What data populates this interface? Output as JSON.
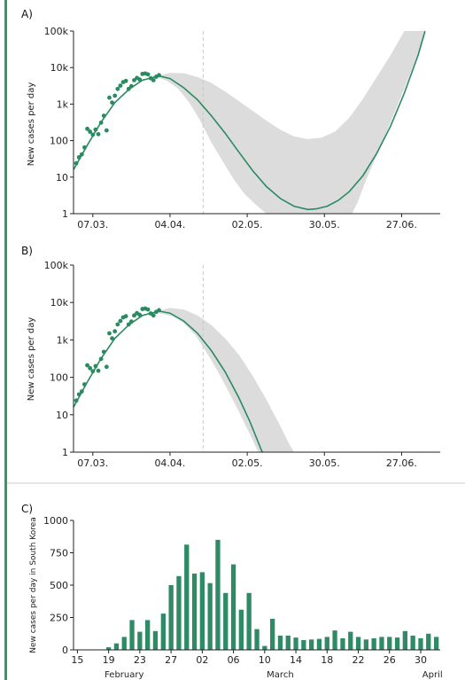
{
  "colors": {
    "line": "#2a8a62",
    "points": "#2a8a62",
    "bars": "#2e8b66",
    "band": "#dcdcdc",
    "frame": "#2e9a6a",
    "divider": "#cccccc"
  },
  "chart_data": [
    {
      "type": "scatter",
      "panel_label": "A)",
      "ylabel": "New cases per day",
      "y_scale": "log",
      "ylim": [
        1,
        100000
      ],
      "y_ticks": [
        1,
        10,
        100,
        1000,
        10000,
        100000
      ],
      "y_tick_labels": [
        "1",
        "10",
        "100",
        "1k",
        "10k",
        "100k"
      ],
      "x_ticks": [
        "07.03.",
        "04.04.",
        "02.05.",
        "30.05.",
        "27.06."
      ],
      "x_tick_days": [
        7,
        35,
        63,
        91,
        119
      ],
      "xlim_days": [
        0,
        133
      ],
      "vline_day": 47,
      "points": [
        {
          "x": 1,
          "y": 24
        },
        {
          "x": 2,
          "y": 35
        },
        {
          "x": 3,
          "y": 42
        },
        {
          "x": 4,
          "y": 65
        },
        {
          "x": 5,
          "y": 210
        },
        {
          "x": 6,
          "y": 175
        },
        {
          "x": 7,
          "y": 145
        },
        {
          "x": 8,
          "y": 200
        },
        {
          "x": 9,
          "y": 150
        },
        {
          "x": 10,
          "y": 310
        },
        {
          "x": 11,
          "y": 480
        },
        {
          "x": 12,
          "y": 190
        },
        {
          "x": 13,
          "y": 1500
        },
        {
          "x": 14,
          "y": 1100
        },
        {
          "x": 15,
          "y": 1700
        },
        {
          "x": 16,
          "y": 2600
        },
        {
          "x": 17,
          "y": 3200
        },
        {
          "x": 18,
          "y": 4000
        },
        {
          "x": 19,
          "y": 4300
        },
        {
          "x": 20,
          "y": 2600
        },
        {
          "x": 21,
          "y": 3100
        },
        {
          "x": 22,
          "y": 4500
        },
        {
          "x": 23,
          "y": 5200
        },
        {
          "x": 24,
          "y": 4700
        },
        {
          "x": 25,
          "y": 6700
        },
        {
          "x": 26,
          "y": 6900
        },
        {
          "x": 27,
          "y": 6500
        },
        {
          "x": 28,
          "y": 5100
        },
        {
          "x": 29,
          "y": 4500
        },
        {
          "x": 30,
          "y": 5600
        },
        {
          "x": 31,
          "y": 6200
        }
      ],
      "fit_line": [
        {
          "x": 0,
          "y": 16
        },
        {
          "x": 5,
          "y": 75
        },
        {
          "x": 10,
          "y": 320
        },
        {
          "x": 15,
          "y": 1100
        },
        {
          "x": 20,
          "y": 2500
        },
        {
          "x": 25,
          "y": 4500
        },
        {
          "x": 31,
          "y": 5900
        },
        {
          "x": 35,
          "y": 5000
        },
        {
          "x": 40,
          "y": 2800
        },
        {
          "x": 45,
          "y": 1300
        },
        {
          "x": 50,
          "y": 480
        },
        {
          "x": 55,
          "y": 160
        },
        {
          "x": 60,
          "y": 48
        },
        {
          "x": 65,
          "y": 15
        },
        {
          "x": 70,
          "y": 5.5
        },
        {
          "x": 75,
          "y": 2.6
        },
        {
          "x": 80,
          "y": 1.6
        },
        {
          "x": 85,
          "y": 1.3
        },
        {
          "x": 88,
          "y": 1.35
        },
        {
          "x": 92,
          "y": 1.6
        },
        {
          "x": 96,
          "y": 2.3
        },
        {
          "x": 100,
          "y": 4
        },
        {
          "x": 105,
          "y": 11
        },
        {
          "x": 110,
          "y": 45
        },
        {
          "x": 115,
          "y": 250
        },
        {
          "x": 120,
          "y": 2000
        },
        {
          "x": 125,
          "y": 22000
        },
        {
          "x": 127.5,
          "y": 100000
        }
      ],
      "band_upper": [
        {
          "x": 31,
          "y": 6000
        },
        {
          "x": 35,
          "y": 7200
        },
        {
          "x": 40,
          "y": 7000
        },
        {
          "x": 45,
          "y": 5500
        },
        {
          "x": 50,
          "y": 3800
        },
        {
          "x": 55,
          "y": 2200
        },
        {
          "x": 60,
          "y": 1200
        },
        {
          "x": 65,
          "y": 650
        },
        {
          "x": 70,
          "y": 350
        },
        {
          "x": 75,
          "y": 200
        },
        {
          "x": 80,
          "y": 130
        },
        {
          "x": 85,
          "y": 110
        },
        {
          "x": 90,
          "y": 120
        },
        {
          "x": 95,
          "y": 180
        },
        {
          "x": 100,
          "y": 420
        },
        {
          "x": 105,
          "y": 1400
        },
        {
          "x": 110,
          "y": 5500
        },
        {
          "x": 115,
          "y": 22000
        },
        {
          "x": 120,
          "y": 100000
        }
      ],
      "band_lower": [
        {
          "x": 127.5,
          "y": 100000
        },
        {
          "x": 125,
          "y": 25000
        },
        {
          "x": 120,
          "y": 2600
        },
        {
          "x": 115,
          "y": 320
        },
        {
          "x": 110,
          "y": 40
        },
        {
          "x": 106,
          "y": 8
        },
        {
          "x": 103,
          "y": 2
        },
        {
          "x": 101,
          "y": 1
        },
        {
          "x": 70,
          "y": 1
        },
        {
          "x": 66,
          "y": 1.8
        },
        {
          "x": 62,
          "y": 3.5
        },
        {
          "x": 58,
          "y": 9
        },
        {
          "x": 54,
          "y": 28
        },
        {
          "x": 50,
          "y": 90
        },
        {
          "x": 46,
          "y": 350
        },
        {
          "x": 42,
          "y": 1100
        },
        {
          "x": 38,
          "y": 2600
        },
        {
          "x": 34,
          "y": 4300
        },
        {
          "x": 31,
          "y": 5200
        }
      ]
    },
    {
      "type": "scatter",
      "panel_label": "B)",
      "ylabel": "New cases per day",
      "y_scale": "log",
      "ylim": [
        1,
        100000
      ],
      "y_ticks": [
        1,
        10,
        100,
        1000,
        10000,
        100000
      ],
      "y_tick_labels": [
        "1",
        "10",
        "100",
        "1k",
        "10k",
        "100k"
      ],
      "x_ticks": [
        "07.03.",
        "04.04.",
        "02.05.",
        "30.05.",
        "27.06."
      ],
      "x_tick_days": [
        7,
        35,
        63,
        91,
        119
      ],
      "xlim_days": [
        0,
        133
      ],
      "vline_day": 47,
      "points": [
        {
          "x": 1,
          "y": 24
        },
        {
          "x": 2,
          "y": 35
        },
        {
          "x": 3,
          "y": 42
        },
        {
          "x": 4,
          "y": 65
        },
        {
          "x": 5,
          "y": 210
        },
        {
          "x": 6,
          "y": 175
        },
        {
          "x": 7,
          "y": 145
        },
        {
          "x": 8,
          "y": 200
        },
        {
          "x": 9,
          "y": 150
        },
        {
          "x": 10,
          "y": 310
        },
        {
          "x": 11,
          "y": 480
        },
        {
          "x": 12,
          "y": 190
        },
        {
          "x": 13,
          "y": 1500
        },
        {
          "x": 14,
          "y": 1100
        },
        {
          "x": 15,
          "y": 1700
        },
        {
          "x": 16,
          "y": 2600
        },
        {
          "x": 17,
          "y": 3200
        },
        {
          "x": 18,
          "y": 4000
        },
        {
          "x": 19,
          "y": 4300
        },
        {
          "x": 20,
          "y": 2600
        },
        {
          "x": 21,
          "y": 3100
        },
        {
          "x": 22,
          "y": 4500
        },
        {
          "x": 23,
          "y": 5200
        },
        {
          "x": 24,
          "y": 4700
        },
        {
          "x": 25,
          "y": 6700
        },
        {
          "x": 26,
          "y": 6900
        },
        {
          "x": 27,
          "y": 6500
        },
        {
          "x": 28,
          "y": 5100
        },
        {
          "x": 29,
          "y": 4500
        },
        {
          "x": 30,
          "y": 5600
        },
        {
          "x": 31,
          "y": 6200
        }
      ],
      "fit_line": [
        {
          "x": 0,
          "y": 16
        },
        {
          "x": 5,
          "y": 75
        },
        {
          "x": 10,
          "y": 320
        },
        {
          "x": 15,
          "y": 1100
        },
        {
          "x": 20,
          "y": 2500
        },
        {
          "x": 25,
          "y": 4500
        },
        {
          "x": 31,
          "y": 5900
        },
        {
          "x": 35,
          "y": 5200
        },
        {
          "x": 40,
          "y": 3200
        },
        {
          "x": 45,
          "y": 1500
        },
        {
          "x": 50,
          "y": 520
        },
        {
          "x": 55,
          "y": 140
        },
        {
          "x": 60,
          "y": 28
        },
        {
          "x": 64,
          "y": 6.5
        },
        {
          "x": 68,
          "y": 1.2
        },
        {
          "x": 68.5,
          "y": 1
        }
      ],
      "band_upper": [
        {
          "x": 31,
          "y": 6000
        },
        {
          "x": 35,
          "y": 7200
        },
        {
          "x": 40,
          "y": 6500
        },
        {
          "x": 45,
          "y": 4500
        },
        {
          "x": 50,
          "y": 2500
        },
        {
          "x": 55,
          "y": 1100
        },
        {
          "x": 60,
          "y": 400
        },
        {
          "x": 65,
          "y": 110
        },
        {
          "x": 70,
          "y": 25
        },
        {
          "x": 75,
          "y": 5
        },
        {
          "x": 78,
          "y": 1.8
        },
        {
          "x": 80,
          "y": 1
        }
      ],
      "band_lower": [
        {
          "x": 67,
          "y": 1
        },
        {
          "x": 64,
          "y": 3
        },
        {
          "x": 60,
          "y": 12
        },
        {
          "x": 56,
          "y": 45
        },
        {
          "x": 52,
          "y": 160
        },
        {
          "x": 48,
          "y": 500
        },
        {
          "x": 44,
          "y": 1400
        },
        {
          "x": 40,
          "y": 2800
        },
        {
          "x": 36,
          "y": 4300
        },
        {
          "x": 31,
          "y": 5200
        }
      ]
    },
    {
      "type": "bar",
      "panel_label": "C)",
      "ylabel": "New cases per day in South Korea",
      "ylim": [
        0,
        1000
      ],
      "y_ticks": [
        0,
        250,
        500,
        750,
        1000
      ],
      "x_tick_labels": [
        "15",
        "19",
        "23",
        "27",
        "02",
        "06",
        "10",
        "14",
        "18",
        "22",
        "26",
        "30"
      ],
      "x_tick_index": [
        0,
        4,
        8,
        12,
        16,
        20,
        24,
        28,
        32,
        36,
        40,
        44
      ],
      "month_labels": [
        {
          "label": "February",
          "index": 6
        },
        {
          "label": "March",
          "index": 26
        },
        {
          "label": "April",
          "index": 45.5
        }
      ],
      "n_days": 47,
      "values": [
        0,
        0,
        0,
        0,
        20,
        50,
        100,
        230,
        140,
        230,
        145,
        280,
        500,
        570,
        813,
        590,
        600,
        516,
        850,
        440,
        660,
        310,
        440,
        160,
        30,
        240,
        110,
        110,
        95,
        75,
        80,
        85,
        100,
        150,
        90,
        140,
        100,
        80,
        90,
        100,
        100,
        95,
        145,
        110,
        90,
        125,
        100
      ]
    }
  ]
}
